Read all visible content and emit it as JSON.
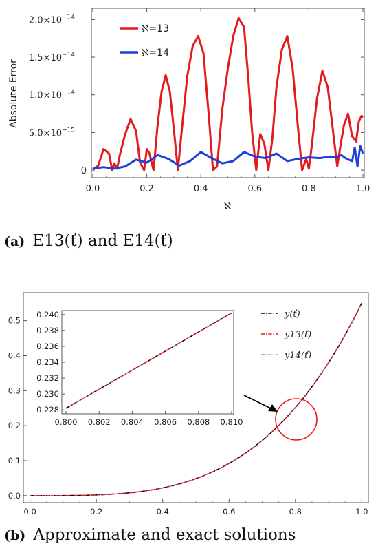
{
  "chart_data": [
    {
      "type": "line",
      "xlabel": "ℵ",
      "ylabel": "Absolute Error",
      "xlim": [
        0,
        1
      ],
      "ylim": [
        -1e-15,
        2.15e-14
      ],
      "x_ticks": [
        "0.0",
        "0.2",
        "0.4",
        "0.6",
        "0.8",
        "1.0"
      ],
      "y_ticks": [
        "0",
        "5.0×10",
        "1.0×10",
        "1.5×10",
        "2.0×10"
      ],
      "y_tick_exponents": [
        "",
        "−15",
        "−14",
        "−14",
        "−14"
      ],
      "legend_placement": "top-left",
      "series": [
        {
          "name": "ℵ=13",
          "color": "#e41a1c",
          "x": [
            0.0,
            0.02,
            0.04,
            0.06,
            0.072,
            0.08,
            0.09,
            0.1,
            0.12,
            0.14,
            0.16,
            0.175,
            0.19,
            0.2,
            0.21,
            0.225,
            0.24,
            0.255,
            0.27,
            0.285,
            0.3,
            0.315,
            0.33,
            0.35,
            0.37,
            0.39,
            0.41,
            0.43,
            0.445,
            0.46,
            0.48,
            0.5,
            0.52,
            0.54,
            0.56,
            0.575,
            0.59,
            0.605,
            0.62,
            0.635,
            0.65,
            0.665,
            0.68,
            0.7,
            0.72,
            0.74,
            0.76,
            0.775,
            0.79,
            0.8,
            0.81,
            0.83,
            0.85,
            0.87,
            0.89,
            0.905,
            0.915,
            0.93,
            0.945,
            0.96,
            0.975,
            0.985,
            0.995,
            1.0
          ],
          "y": [
            1e-16,
            6e-16,
            2.8e-15,
            2.2e-15,
            0.0,
            9e-16,
            2e-16,
            2e-15,
            4.8e-15,
            6.8e-15,
            5.2e-15,
            1e-15,
            0.0,
            2.8e-15,
            2.2e-15,
            0.0,
            6e-15,
            1.05e-14,
            1.26e-14,
            1.05e-14,
            5.5e-15,
            0.0,
            5.5e-15,
            1.25e-14,
            1.65e-14,
            1.78e-14,
            1.55e-14,
            7e-15,
            0.0,
            5e-16,
            8.2e-15,
            1.35e-14,
            1.78e-14,
            2.02e-14,
            1.9e-14,
            1.25e-14,
            5e-15,
            0.0,
            4.8e-15,
            3.5e-15,
            0.0,
            4.2e-15,
            1.1e-14,
            1.6e-14,
            1.78e-14,
            1.35e-14,
            5.5e-15,
            0.0,
            1.5e-15,
            2e-16,
            3e-15,
            9.5e-15,
            1.32e-14,
            1.1e-14,
            5e-15,
            5e-16,
            2.8e-15,
            6e-15,
            7.5e-15,
            4.5e-15,
            3.8e-15,
            6.5e-15,
            7.2e-15,
            7e-15
          ]
        },
        {
          "name": "ℵ=14",
          "color": "#1f3fd9",
          "x": [
            0.0,
            0.04,
            0.08,
            0.12,
            0.16,
            0.2,
            0.24,
            0.28,
            0.32,
            0.36,
            0.4,
            0.44,
            0.48,
            0.52,
            0.56,
            0.6,
            0.64,
            0.68,
            0.72,
            0.76,
            0.8,
            0.84,
            0.88,
            0.9,
            0.92,
            0.94,
            0.96,
            0.97,
            0.98,
            0.99,
            1.0
          ],
          "y": [
            2e-16,
            4e-16,
            2e-16,
            5e-16,
            1.4e-15,
            1e-15,
            2e-15,
            1.5e-15,
            6e-16,
            1.2e-15,
            2.4e-15,
            1.6e-15,
            9e-16,
            1.2e-15,
            2.4e-15,
            1.8e-15,
            1.6e-15,
            2.2e-15,
            1.2e-15,
            1.5e-15,
            1.7e-15,
            1.6e-15,
            1.8e-15,
            1.7e-15,
            2e-15,
            1.5e-15,
            1.2e-15,
            3e-15,
            5e-16,
            3.2e-15,
            2.2e-15
          ]
        }
      ],
      "caption_label": "(a)",
      "caption_text": "E13(ť) and E14(ť)"
    },
    {
      "type": "line",
      "xlim": [
        -0.02,
        1.02
      ],
      "ylim": [
        -0.02,
        0.58
      ],
      "x_ticks": [
        "0.0",
        "0.2",
        "0.4",
        "0.6",
        "0.8",
        "1.0"
      ],
      "y_ticks": [
        "0.0",
        "0.1",
        "0.2",
        "0.3",
        "0.4",
        "0.5"
      ],
      "legend_placement": "top-right",
      "series": [
        {
          "name": "y(ť)",
          "color": "#000000",
          "style": "dash-dot"
        },
        {
          "name": "y13(ť)",
          "color": "#e41a1c",
          "style": "dash-dot"
        },
        {
          "name": "y14(ť)",
          "color": "#8a8ae6",
          "style": "dash-dot"
        }
      ],
      "inset": {
        "xlim": [
          0.8,
          0.81
        ],
        "ylim": [
          0.2275,
          0.2405
        ],
        "x_ticks": [
          "0.800",
          "0.802",
          "0.804",
          "0.806",
          "0.808",
          "0.810"
        ],
        "y_ticks": [
          "0.228",
          "0.230",
          "0.232",
          "0.234",
          "0.236",
          "0.238",
          "0.240"
        ],
        "x": [
          0.8,
          0.81
        ],
        "y": [
          0.2282,
          0.2402
        ]
      },
      "caption_label": "(b)",
      "caption_text": "Approximate and exact solutions"
    }
  ]
}
